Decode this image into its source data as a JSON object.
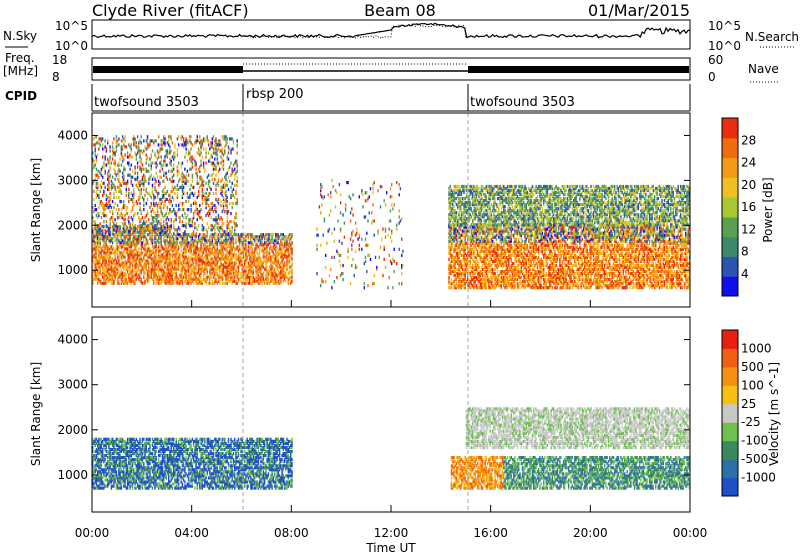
{
  "header": {
    "station": "Clyde River (fitACF)",
    "beam": "Beam 08",
    "date": "01/Mar/2015"
  },
  "noise_panel": {
    "left_label": "N.Sky",
    "right_label": "N.Search",
    "left_ticks": [
      "10^5",
      "10^0"
    ],
    "right_ticks": [
      "10^5",
      "10^0"
    ]
  },
  "freq_panel": {
    "left_label_1": "Freq.",
    "left_label_2": "[MHz]",
    "right_label": "Nave",
    "left_ticks": [
      "18",
      "8"
    ],
    "right_ticks": [
      "60",
      "0"
    ]
  },
  "cpid": {
    "label": "CPID",
    "segments": [
      {
        "name": "twofsound 3503",
        "start": 0,
        "end": 6
      },
      {
        "name": "rbsp 200",
        "start": 6,
        "end": 15
      },
      {
        "name": "twofsound 3503",
        "start": 15,
        "end": 24
      }
    ]
  },
  "chart_data": [
    {
      "type": "heatmap",
      "title": "",
      "xlabel": "",
      "ylabel": "Slant Range [km]",
      "xlim": [
        0,
        24
      ],
      "ylim": [
        180,
        4500
      ],
      "yticks": [
        1000,
        2000,
        3000,
        4000
      ],
      "colorbar": {
        "label": "Power [dB]",
        "ticks": [
          4,
          8,
          12,
          16,
          20,
          24,
          28
        ],
        "range": [
          0,
          32
        ],
        "colors": [
          "#1010ee",
          "#2a55b0",
          "#3b8a6c",
          "#5aa050",
          "#a8c832",
          "#f0c020",
          "#f59a15",
          "#f06a10",
          "#e83010"
        ]
      },
      "scatter_regions": [
        {
          "x": [
            0,
            3.1
          ],
          "y": [
            700,
            2000
          ],
          "level": "high"
        },
        {
          "x": [
            3.0,
            8.0
          ],
          "y": [
            700,
            1800
          ],
          "level": "high"
        },
        {
          "x": [
            0,
            5.8
          ],
          "y": [
            1800,
            4000
          ],
          "level": "patchy"
        },
        {
          "x": [
            9.0,
            12.5
          ],
          "y": [
            600,
            3000
          ],
          "level": "sparse"
        },
        {
          "x": [
            14.3,
            24
          ],
          "y": [
            600,
            2000
          ],
          "level": "high"
        },
        {
          "x": [
            14.3,
            24
          ],
          "y": [
            2000,
            2900
          ],
          "level": "medium"
        }
      ]
    },
    {
      "type": "heatmap",
      "title": "",
      "xlabel": "Time UT",
      "ylabel": "Slant Range [km]",
      "xlim": [
        0,
        24
      ],
      "ylim": [
        180,
        4500
      ],
      "yticks": [
        1000,
        2000,
        3000,
        4000
      ],
      "xticks": [
        "00:00",
        "04:00",
        "08:00",
        "12:00",
        "16:00",
        "20:00",
        "00:00"
      ],
      "colorbar": {
        "label": "Velocity [m s^-1]",
        "ticks": [
          "1000",
          "500",
          "100",
          "25",
          "-25",
          "-100",
          "-500",
          "-1000"
        ],
        "colors": [
          "#1e50c8",
          "#2c70a8",
          "#3a8a60",
          "#70c050",
          "#c8c8c8",
          "#f5c010",
          "#f59010",
          "#f06010",
          "#e82010"
        ]
      },
      "scatter_regions": [
        {
          "x": [
            0,
            8.0
          ],
          "y": [
            700,
            1800
          ],
          "level": "negative-dominant"
        },
        {
          "x": [
            14.4,
            16.5
          ],
          "y": [
            700,
            1400
          ],
          "level": "positive"
        },
        {
          "x": [
            16.5,
            24
          ],
          "y": [
            700,
            1400
          ],
          "level": "negative"
        },
        {
          "x": [
            15.0,
            24
          ],
          "y": [
            1600,
            2500
          ],
          "level": "near-zero"
        }
      ]
    }
  ]
}
